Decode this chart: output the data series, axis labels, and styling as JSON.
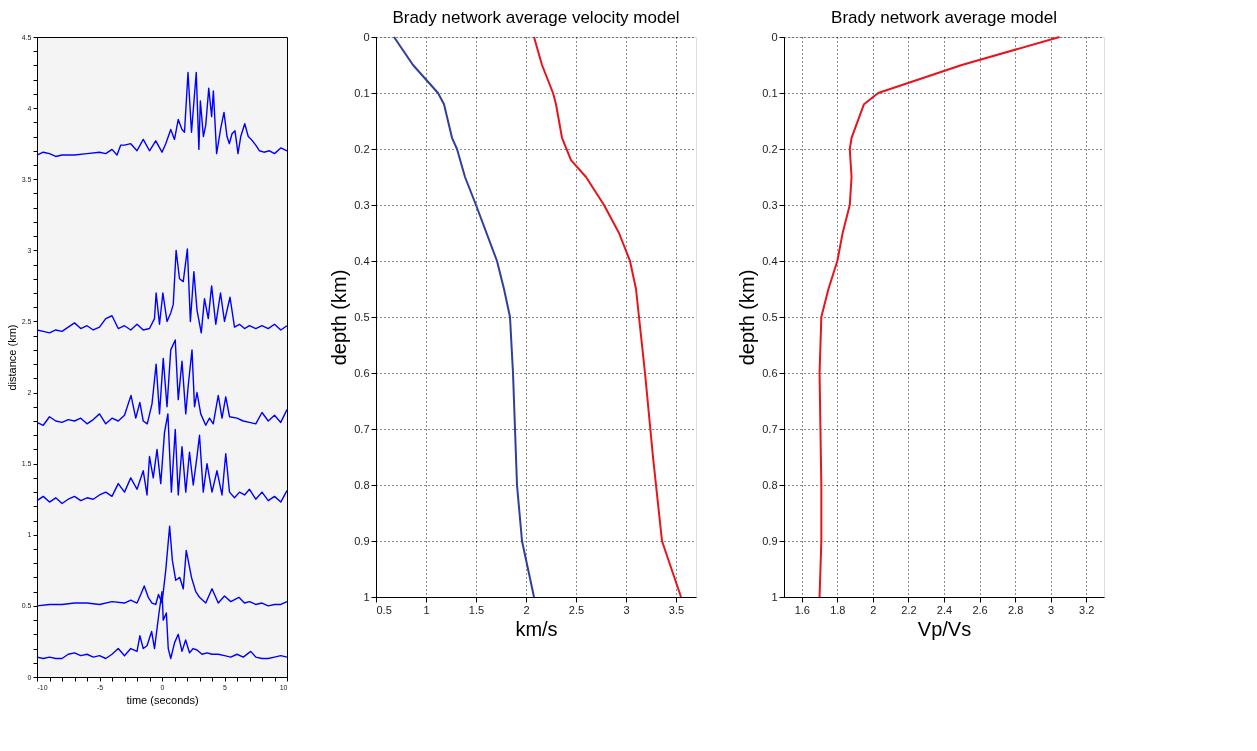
{
  "chart_data": [
    {
      "type": "line",
      "xlabel": "time (seconds)",
      "ylabel": "distance (km)",
      "xlim": [
        -10,
        10
      ],
      "ylim": [
        0,
        4.5
      ],
      "xticks": [
        -10,
        {
          "value": -9,
          "label": null
        },
        {
          "value": -8,
          "label": null
        },
        {
          "value": -7,
          "label": null
        },
        {
          "value": -6,
          "label": null
        },
        -5,
        {
          "value": -4,
          "label": null
        },
        {
          "value": -3,
          "label": null
        },
        {
          "value": -2,
          "label": null
        },
        {
          "value": -1,
          "label": null
        },
        0,
        {
          "value": 1,
          "label": null
        },
        {
          "value": 2,
          "label": null
        },
        {
          "value": 3,
          "label": null
        },
        {
          "value": 4,
          "label": null
        },
        5,
        {
          "value": 6,
          "label": null
        },
        {
          "value": 7,
          "label": null
        },
        {
          "value": 8,
          "label": null
        },
        {
          "value": 9,
          "label": null
        },
        10
      ],
      "yticks": [
        0,
        {
          "value": 0.1,
          "label": null
        },
        {
          "value": 0.2,
          "label": null
        },
        {
          "value": 0.3,
          "label": null
        },
        {
          "value": 0.4,
          "label": null
        },
        0.5,
        {
          "value": 0.6,
          "label": null
        },
        {
          "value": 0.7,
          "label": null
        },
        {
          "value": 0.8,
          "label": null
        },
        {
          "value": 0.9,
          "label": null
        },
        1,
        {
          "value": 1.1,
          "label": null
        },
        {
          "value": 1.2,
          "label": null
        },
        {
          "value": 1.3,
          "label": null
        },
        {
          "value": 1.4,
          "label": null
        },
        1.5,
        {
          "value": 1.6,
          "label": null
        },
        {
          "value": 1.7,
          "label": null
        },
        {
          "value": 1.8,
          "label": null
        },
        {
          "value": 1.9,
          "label": null
        },
        2,
        {
          "value": 2.1,
          "label": null
        },
        {
          "value": 2.2,
          "label": null
        },
        {
          "value": 2.3,
          "label": null
        },
        {
          "value": 2.4,
          "label": null
        },
        2.5,
        {
          "value": 2.6,
          "label": null
        },
        {
          "value": 2.7,
          "label": null
        },
        {
          "value": 2.8,
          "label": null
        },
        {
          "value": 2.9,
          "label": null
        },
        3,
        {
          "value": 3.1,
          "label": null
        },
        {
          "value": 3.2,
          "label": null
        },
        {
          "value": 3.3,
          "label": null
        },
        {
          "value": 3.4,
          "label": null
        },
        3.5,
        {
          "value": 3.6,
          "label": null
        },
        {
          "value": 3.7,
          "label": null
        },
        {
          "value": 3.8,
          "label": null
        },
        {
          "value": 3.9,
          "label": null
        },
        4,
        {
          "value": 4.1,
          "label": null
        },
        {
          "value": 4.2,
          "label": null
        },
        {
          "value": 4.3,
          "label": null
        },
        {
          "value": 4.4,
          "label": null
        },
        4.5
      ],
      "grid": false,
      "legend": false,
      "line_style": "solid",
      "marker": "none",
      "series": [
        {
          "color": "#0000ff",
          "x": [
            -10,
            -9.5,
            -9,
            -8.5,
            -8,
            -7,
            -6,
            -5,
            -4.5,
            -4,
            -3.6,
            -3.3,
            -3,
            -2.5,
            -2,
            -1.5,
            -1,
            -0.5,
            0,
            0.3,
            0.7,
            1,
            1.3,
            1.6,
            1.8,
            2.08,
            2.36,
            2.74,
            2.95,
            3.07,
            3.31,
            3.5,
            3.74,
            3.97,
            4.11,
            4.37,
            4.7,
            4.96,
            5.2,
            5.39,
            5.6,
            5.84,
            6.08,
            6.3,
            6.62,
            6.9,
            7.14,
            7.5,
            7.8,
            8.15,
            8.6,
            9,
            9.5,
            10
          ],
          "values": [
            3.67,
            3.69,
            3.68,
            3.66,
            3.67,
            3.67,
            3.68,
            3.69,
            3.68,
            3.71,
            3.67,
            3.74,
            3.74,
            3.75,
            3.7,
            3.78,
            3.7,
            3.77,
            3.69,
            3.75,
            3.85,
            3.78,
            3.92,
            3.85,
            3.83,
            4.25,
            3.83,
            4.25,
            3.71,
            4.05,
            3.8,
            3.88,
            4.14,
            3.94,
            4.12,
            3.68,
            3.86,
            3.97,
            3.8,
            3.75,
            3.82,
            3.84,
            3.68,
            3.8,
            3.89,
            3.8,
            3.78,
            3.74,
            3.7,
            3.69,
            3.7,
            3.68,
            3.72,
            3.7
          ]
        },
        {
          "color": "#0000ff",
          "x": [
            -10,
            -9.5,
            -9,
            -8.5,
            -8,
            -7.5,
            -7,
            -6.5,
            -6,
            -5.5,
            -5,
            -4.5,
            -4,
            -3.5,
            -3,
            -2.5,
            -2,
            -1.5,
            -1,
            -0.6,
            -0.47,
            -0.2,
            0.07,
            0.4,
            0.7,
            0.9,
            1.13,
            1.4,
            1.7,
            2.03,
            2.27,
            2.55,
            2.8,
            3.14,
            3.4,
            3.7,
            3.97,
            4.3,
            4.68,
            5.0,
            5.44,
            5.8,
            6.2,
            6.6,
            7,
            7.5,
            8,
            8.5,
            9,
            9.5,
            10
          ],
          "values": [
            2.44,
            2.43,
            2.42,
            2.44,
            2.43,
            2.46,
            2.49,
            2.45,
            2.47,
            2.44,
            2.46,
            2.52,
            2.54,
            2.45,
            2.47,
            2.44,
            2.48,
            2.44,
            2.45,
            2.52,
            2.7,
            2.48,
            2.7,
            2.5,
            2.56,
            2.62,
            3.0,
            2.8,
            2.78,
            3.01,
            2.5,
            2.85,
            2.58,
            2.42,
            2.66,
            2.52,
            2.75,
            2.48,
            2.7,
            2.5,
            2.67,
            2.46,
            2.48,
            2.45,
            2.47,
            2.45,
            2.47,
            2.45,
            2.48,
            2.44,
            2.47
          ]
        },
        {
          "color": "#0000ff",
          "x": [
            -10,
            -9.5,
            -9,
            -8.5,
            -8,
            -7.5,
            -7,
            -6.5,
            -6,
            -5.5,
            -5,
            -4.5,
            -4,
            -3.5,
            -3,
            -2.48,
            -2.1,
            -1.77,
            -1.5,
            -1.18,
            -0.8,
            -0.47,
            -0.2,
            0.1,
            0.4,
            0.7,
            1.06,
            1.3,
            1.6,
            1.9,
            2.1,
            2.4,
            2.6,
            2.8,
            3.1,
            3.5,
            3.8,
            4.1,
            4.5,
            4.8,
            5.1,
            5.4,
            6,
            6.5,
            7,
            7.5,
            8,
            8.5,
            9,
            9.5,
            10
          ],
          "values": [
            1.79,
            1.77,
            1.83,
            1.8,
            1.79,
            1.81,
            1.8,
            1.82,
            1.78,
            1.81,
            1.85,
            1.78,
            1.82,
            1.8,
            1.84,
            1.98,
            1.82,
            1.93,
            1.8,
            1.78,
            1.92,
            2.2,
            1.85,
            2.24,
            1.9,
            2.3,
            2.37,
            1.95,
            2.22,
            1.85,
            2.05,
            2.3,
            1.9,
            2.0,
            1.85,
            1.77,
            1.82,
            1.78,
            1.98,
            1.82,
            1.97,
            1.83,
            1.82,
            1.8,
            1.79,
            1.78,
            1.86,
            1.8,
            1.84,
            1.79,
            1.88
          ]
        },
        {
          "color": "#0000ff",
          "x": [
            -10,
            -9.5,
            -9,
            -8.5,
            -8,
            -7.5,
            -7,
            -6.5,
            -6,
            -5.5,
            -5,
            -4.5,
            -4,
            -3.5,
            -3,
            -2.5,
            -2,
            -1.5,
            -1.2,
            -1,
            -0.7,
            -0.4,
            -0.1,
            0.2,
            0.47,
            0.75,
            1.06,
            1.3,
            1.6,
            1.9,
            2.2,
            2.5,
            2.8,
            3.0,
            3.3,
            3.6,
            4,
            4.4,
            4.8,
            5.1,
            5.4,
            5.8,
            6.2,
            6.6,
            7,
            7.5,
            8,
            8.5,
            9,
            9.5,
            10
          ],
          "values": [
            1.24,
            1.27,
            1.23,
            1.26,
            1.22,
            1.25,
            1.27,
            1.24,
            1.26,
            1.25,
            1.28,
            1.3,
            1.27,
            1.36,
            1.3,
            1.4,
            1.32,
            1.45,
            1.28,
            1.55,
            1.4,
            1.6,
            1.36,
            1.72,
            1.85,
            1.3,
            1.74,
            1.28,
            1.62,
            1.3,
            1.58,
            1.35,
            1.55,
            1.7,
            1.3,
            1.5,
            1.3,
            1.45,
            1.28,
            1.57,
            1.3,
            1.26,
            1.3,
            1.28,
            1.32,
            1.25,
            1.3,
            1.24,
            1.27,
            1.23,
            1.31
          ]
        },
        {
          "color": "#0000ff",
          "x": [
            -10,
            -9,
            -8,
            -7,
            -6,
            -5,
            -4,
            -3,
            -2.5,
            -2,
            -1.7,
            -1.42,
            -1.1,
            -0.8,
            -0.5,
            -0.28,
            0,
            0.3,
            0.61,
            0.83,
            1.1,
            1.42,
            1.7,
            1.94,
            2.36,
            2.7,
            3,
            3.5,
            4,
            4.5,
            5,
            5.5,
            6.15,
            6.6,
            7,
            7.5,
            8,
            8.5,
            9,
            9.5,
            10
          ],
          "values": [
            0.5,
            0.51,
            0.51,
            0.52,
            0.52,
            0.51,
            0.53,
            0.52,
            0.54,
            0.52,
            0.58,
            0.64,
            0.56,
            0.52,
            0.51,
            0.58,
            0.52,
            0.75,
            1.06,
            0.82,
            0.68,
            0.7,
            0.62,
            0.89,
            0.7,
            0.6,
            0.56,
            0.52,
            0.62,
            0.52,
            0.57,
            0.53,
            0.56,
            0.52,
            0.53,
            0.51,
            0.52,
            0.5,
            0.51,
            0.51,
            0.53
          ]
        },
        {
          "color": "#0000ff",
          "x": [
            -10,
            -9.5,
            -9,
            -8.5,
            -8,
            -7.5,
            -7,
            -6.5,
            -6,
            -5.5,
            -5,
            -4.5,
            -4,
            -3.5,
            -3,
            -2.5,
            -2,
            -1.77,
            -1.5,
            -1.2,
            -0.83,
            -0.6,
            -0.24,
            0,
            0.1,
            0.35,
            0.5,
            0.7,
            1.0,
            1.3,
            1.6,
            1.89,
            2.2,
            2.5,
            2.8,
            3.2,
            3.6,
            4,
            4.5,
            5,
            5.5,
            6,
            6.5,
            7.1,
            7.5,
            8,
            8.5,
            9,
            9.5,
            10
          ],
          "values": [
            0.14,
            0.13,
            0.14,
            0.13,
            0.13,
            0.16,
            0.17,
            0.15,
            0.16,
            0.14,
            0.15,
            0.13,
            0.16,
            0.2,
            0.15,
            0.2,
            0.18,
            0.29,
            0.2,
            0.22,
            0.32,
            0.2,
            0.45,
            0.6,
            0.4,
            0.45,
            0.2,
            0.13,
            0.24,
            0.3,
            0.18,
            0.26,
            0.17,
            0.2,
            0.19,
            0.16,
            0.17,
            0.16,
            0.16,
            0.15,
            0.14,
            0.16,
            0.14,
            0.18,
            0.14,
            0.13,
            0.13,
            0.14,
            0.15,
            0.14
          ]
        }
      ]
    },
    {
      "type": "line",
      "title": "Brady network average velocity model",
      "xlabel": "km/s",
      "ylabel": "depth (km)",
      "xlim": [
        0.5,
        3.7
      ],
      "ylim": [
        1,
        0
      ],
      "xticks": [
        0.5,
        1,
        1.5,
        2,
        2.5,
        3,
        3.5
      ],
      "yticks": [
        0,
        0.1,
        0.2,
        0.3,
        0.4,
        0.5,
        0.6,
        0.7,
        0.8,
        0.9,
        1
      ],
      "grid": true,
      "legend": false,
      "line_style": "solid",
      "marker": "none",
      "series": [
        {
          "color": "#2e3f9e",
          "x": [
            0.68,
            0.87,
            1.12,
            1.18,
            1.26,
            1.31,
            1.39,
            1.5,
            1.71,
            1.78,
            1.84,
            1.87,
            1.91,
            1.96,
            2.08
          ],
          "values": [
            0,
            0.05,
            0.1,
            0.12,
            0.18,
            0.2,
            0.25,
            0.3,
            0.4,
            0.45,
            0.5,
            0.6,
            0.8,
            0.9,
            1
          ]
        },
        {
          "color": "#e8141c",
          "x": [
            2.08,
            2.16,
            2.27,
            2.3,
            2.36,
            2.45,
            2.6,
            2.78,
            2.93,
            3.04,
            3.1,
            3.13,
            3.19,
            3.27,
            3.36,
            3.55
          ],
          "values": [
            0,
            0.05,
            0.1,
            0.12,
            0.18,
            0.22,
            0.25,
            0.3,
            0.35,
            0.4,
            0.45,
            0.5,
            0.6,
            0.75,
            0.9,
            1
          ]
        }
      ]
    },
    {
      "type": "line",
      "title": "Brady network average model",
      "xlabel": "Vp/Vs",
      "ylabel": "depth (km)",
      "xlim": [
        1.5,
        3.3
      ],
      "ylim": [
        1,
        0
      ],
      "xticks": [
        1.6,
        1.8,
        2,
        2.2,
        2.4,
        2.6,
        2.8,
        3,
        3.2
      ],
      "yticks": [
        0,
        0.1,
        0.2,
        0.3,
        0.4,
        0.5,
        0.6,
        0.7,
        0.8,
        0.9,
        1
      ],
      "grid": true,
      "legend": false,
      "line_style": "solid",
      "marker": "none",
      "series": [
        {
          "color": "#e8141c",
          "x": [
            3.05,
            2.5,
            2.03,
            1.95,
            1.88,
            1.87,
            1.88,
            1.87,
            1.83,
            1.8,
            1.75,
            1.71,
            1.7,
            1.71,
            1.71,
            1.7
          ],
          "values": [
            0,
            0.05,
            0.1,
            0.12,
            0.18,
            0.2,
            0.25,
            0.3,
            0.35,
            0.4,
            0.45,
            0.5,
            0.6,
            0.8,
            0.9,
            1
          ]
        }
      ]
    }
  ]
}
